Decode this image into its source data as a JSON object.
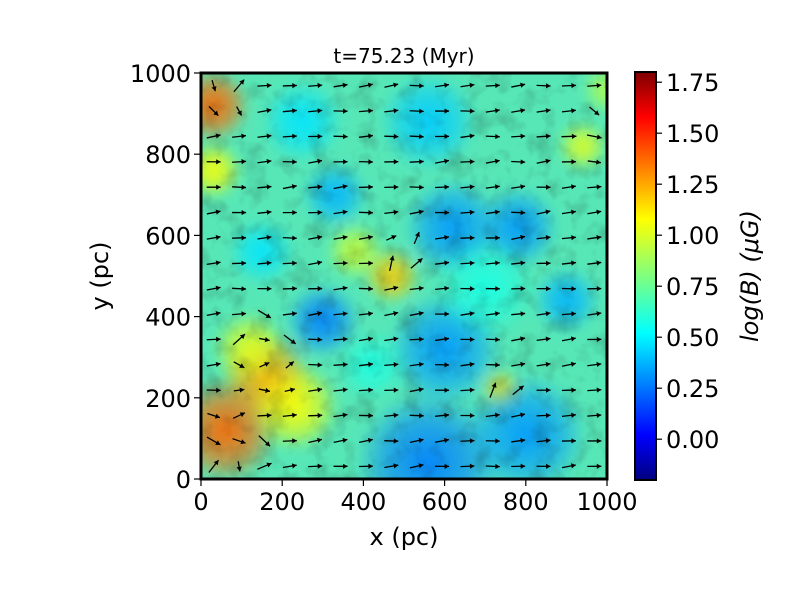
{
  "chart_data": {
    "type": "heatmap",
    "title": "t=75.23 (Myr)",
    "xlabel": "x (pc)",
    "ylabel": "y (pc)",
    "xlim": [
      0,
      1000
    ],
    "ylim": [
      0,
      1000
    ],
    "xticks": [
      "0",
      "200",
      "400",
      "600",
      "800",
      "1000"
    ],
    "xtick_values": [
      0,
      200,
      400,
      600,
      800,
      1000
    ],
    "yticks": [
      "0",
      "200",
      "400",
      "600",
      "800",
      "1000"
    ],
    "ytick_values": [
      0,
      200,
      400,
      600,
      800,
      1000
    ],
    "colorbar": {
      "label": "log(B) (μG)",
      "range": [
        -0.2,
        1.8
      ],
      "ticks": [
        "0.00",
        "0.25",
        "0.50",
        "0.75",
        "1.00",
        "1.25",
        "1.50",
        "1.75"
      ],
      "tick_values": [
        0,
        0.25,
        0.5,
        0.75,
        1.0,
        1.25,
        1.5,
        1.75
      ],
      "colormap": "jet"
    },
    "field_blobs": [
      {
        "x": 30,
        "y": 920,
        "r": 90,
        "value": 1.35
      },
      {
        "x": 30,
        "y": 760,
        "r": 70,
        "value": 1.05
      },
      {
        "x": 60,
        "y": 120,
        "r": 130,
        "value": 1.35
      },
      {
        "x": 160,
        "y": 250,
        "r": 110,
        "value": 1.25
      },
      {
        "x": 230,
        "y": 180,
        "r": 110,
        "value": 1.05
      },
      {
        "x": 120,
        "y": 320,
        "r": 90,
        "value": 1.0
      },
      {
        "x": 470,
        "y": 500,
        "r": 70,
        "value": 1.15
      },
      {
        "x": 380,
        "y": 560,
        "r": 70,
        "value": 0.95
      },
      {
        "x": 740,
        "y": 220,
        "r": 50,
        "value": 1.1
      },
      {
        "x": 940,
        "y": 820,
        "r": 60,
        "value": 1.0
      },
      {
        "x": 1000,
        "y": 960,
        "r": 60,
        "value": 0.9
      },
      {
        "x": 560,
        "y": 40,
        "r": 180,
        "value": 0.3
      },
      {
        "x": 800,
        "y": 110,
        "r": 150,
        "value": 0.35
      },
      {
        "x": 600,
        "y": 320,
        "r": 140,
        "value": 0.35
      },
      {
        "x": 620,
        "y": 620,
        "r": 120,
        "value": 0.35
      },
      {
        "x": 300,
        "y": 390,
        "r": 90,
        "value": 0.3
      },
      {
        "x": 780,
        "y": 620,
        "r": 100,
        "value": 0.35
      },
      {
        "x": 330,
        "y": 700,
        "r": 80,
        "value": 0.4
      },
      {
        "x": 900,
        "y": 440,
        "r": 80,
        "value": 0.4
      },
      {
        "x": 560,
        "y": 880,
        "r": 120,
        "value": 0.45
      },
      {
        "x": 250,
        "y": 880,
        "r": 100,
        "value": 0.5
      },
      {
        "x": 700,
        "y": 470,
        "r": 120,
        "value": 0.6
      },
      {
        "x": 420,
        "y": 280,
        "r": 80,
        "value": 0.6
      },
      {
        "x": 150,
        "y": 560,
        "r": 80,
        "value": 0.5
      }
    ],
    "vector_field": {
      "columns": 16,
      "rows": 16,
      "mean_direction_deg": 5,
      "turbulent_regions": [
        {
          "x": 60,
          "y": 60,
          "r": 120
        },
        {
          "x": 160,
          "y": 300,
          "r": 120
        },
        {
          "x": 500,
          "y": 560,
          "r": 70
        },
        {
          "x": 950,
          "y": 840,
          "r": 70
        },
        {
          "x": 60,
          "y": 920,
          "r": 80
        },
        {
          "x": 740,
          "y": 220,
          "r": 60
        }
      ]
    }
  }
}
